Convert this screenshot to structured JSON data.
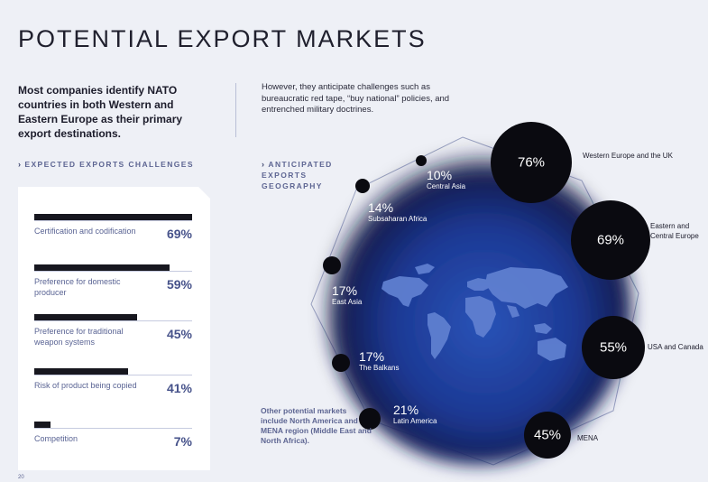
{
  "page": {
    "title": "POTENTIAL EXPORT MARKETS",
    "intro": "Most companies identify NATO countries in both Western and Eastern Europe as their primary export destinations.",
    "intro2": "However, they anticipate challenges such as bureaucratic red tape, “buy national” policies, and entrenched military doctrines.",
    "page_number": "20",
    "note": "Other potential markets include North America and MENA region (Middle East and North Africa)."
  },
  "labels": {
    "challenges_section": "EXPECTED EXPORTS CHALLENGES",
    "geography_section": "ANTICIPATED EXPORTS GEOGRAPHY",
    "chevron": "›"
  },
  "colors": {
    "background": "#eef0f6",
    "bar": "#17171f",
    "accent_text": "#46528a",
    "map_blue": "#1f3f9c",
    "circle": "#0a0a10"
  },
  "chart_data": [
    {
      "type": "bar",
      "orientation": "horizontal",
      "title": "EXPECTED EXPORTS CHALLENGES",
      "categories": [
        "Certification and codification",
        "Preference for domestic producer",
        "Preference for traditional weapon systems",
        "Risk of product being copied",
        "Competition"
      ],
      "values": [
        69,
        59,
        45,
        41,
        7
      ],
      "value_labels": [
        "69%",
        "59%",
        "45%",
        "41%",
        "7%"
      ],
      "unit": "%",
      "xlim": [
        0,
        69
      ]
    },
    {
      "type": "bubble",
      "title": "ANTICIPATED EXPORTS GEOGRAPHY",
      "categories": [
        "Western Europe and the UK",
        "Eastern and Central Europe",
        "USA and Canada",
        "MENA",
        "Latin America",
        "The Balkans",
        "East Asia",
        "Subsaharan Africa",
        "Central Asia"
      ],
      "values": [
        76,
        69,
        55,
        45,
        21,
        17,
        17,
        14,
        10
      ],
      "value_labels": [
        "76%",
        "69%",
        "55%",
        "45%",
        "21%",
        "17%",
        "17%",
        "14%",
        "10%"
      ],
      "unit": "%"
    }
  ]
}
